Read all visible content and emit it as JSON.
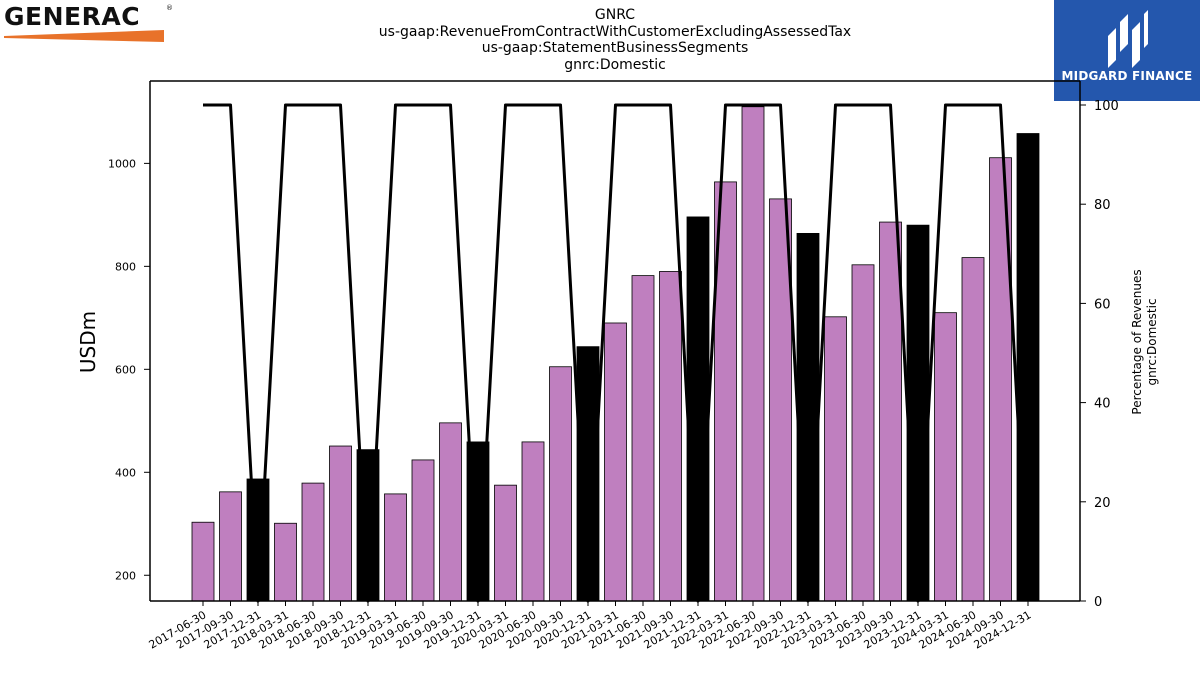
{
  "logos": {
    "left_brand": "GENERAC",
    "right_brand": "MIDGARD FINANCE"
  },
  "colors": {
    "bar_default": "#bf7fbf",
    "bar_highlight": "#000000",
    "line": "#000000",
    "generac_orange": "#e8722a",
    "midgard_blue": "#2457ad"
  },
  "chart_data": {
    "type": "bar",
    "title": [
      "GNRC",
      "us-gaap:RevenueFromContractWithCustomerExcludingAssessedTax",
      "us-gaap:StatementBusinessSegments",
      "gnrc:Domestic"
    ],
    "ylabel": "USDm",
    "y2label": [
      "Percentage of Revenues",
      "gnrc:Domestic"
    ],
    "ylim": [
      150,
      1160
    ],
    "y2lim": [
      0,
      100
    ],
    "yticks": [
      200,
      400,
      600,
      800,
      1000
    ],
    "y2ticks": [
      0,
      20,
      40,
      60,
      80,
      100
    ],
    "categories": [
      "2017-06-30",
      "2017-09-30",
      "2017-12-31",
      "2018-03-31",
      "2018-06-30",
      "2018-09-30",
      "2018-12-31",
      "2019-03-31",
      "2019-06-30",
      "2019-09-30",
      "2019-12-31",
      "2020-03-31",
      "2020-06-30",
      "2020-09-30",
      "2020-12-31",
      "2021-03-31",
      "2021-06-30",
      "2021-09-30",
      "2021-12-31",
      "2022-03-31",
      "2022-06-30",
      "2022-09-30",
      "2022-12-31",
      "2023-03-31",
      "2023-06-30",
      "2023-09-30",
      "2023-12-31",
      "2024-03-31",
      "2024-06-30",
      "2024-09-30",
      "2024-12-31"
    ],
    "values": [
      303,
      362,
      387,
      301,
      379,
      451,
      444,
      358,
      424,
      496,
      459,
      375,
      459,
      605,
      644,
      690,
      782,
      790,
      896,
      964,
      1110,
      931,
      864,
      702,
      803,
      886,
      880,
      710,
      817,
      1011,
      1058
    ],
    "highlighted": [
      false,
      false,
      true,
      false,
      false,
      false,
      true,
      false,
      false,
      false,
      true,
      false,
      false,
      false,
      true,
      false,
      false,
      false,
      true,
      false,
      false,
      false,
      true,
      false,
      false,
      false,
      true,
      false,
      false,
      false,
      true
    ],
    "line_series": {
      "axis": "y2",
      "values": [
        100,
        100,
        0,
        100,
        100,
        100,
        0,
        100,
        100,
        100,
        0,
        100,
        100,
        100,
        0,
        100,
        100,
        100,
        0,
        100,
        100,
        100,
        0,
        100,
        100,
        100,
        0,
        100,
        100,
        100,
        0
      ]
    },
    "grid": false
  }
}
